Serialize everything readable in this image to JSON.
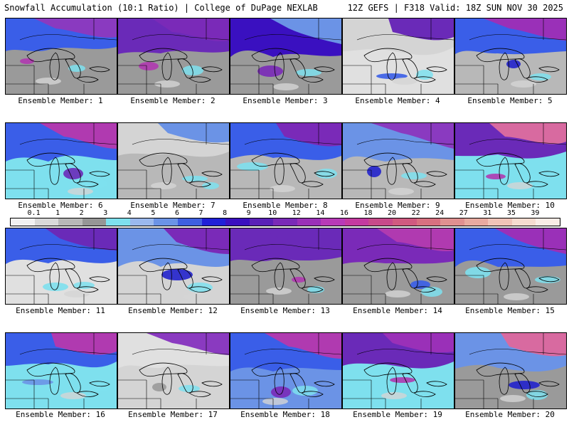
{
  "header": {
    "title": "Snowfall Accumulation (10:1 Ratio) | College of DuPage NEXLAB",
    "run_info": "12Z GEFS | F318 Valid: 18Z SUN NOV 30 2025"
  },
  "colorbar": {
    "levels": [
      "0.1",
      "1",
      "2",
      "3",
      "4",
      "5",
      "6",
      "7",
      "8",
      "9",
      "10",
      "12",
      "14",
      "16",
      "18",
      "20",
      "22",
      "24",
      "27",
      "31",
      "35",
      "39"
    ],
    "colors": [
      "#f2f2f2",
      "#d9d9d9",
      "#b8b8b8",
      "#969696",
      "#7ee0ee",
      "#9ab8ee",
      "#6b93e6",
      "#3f5fe0",
      "#2020d8",
      "#3a10c0",
      "#5a20b8",
      "#7a2ab8",
      "#9a30b8",
      "#b83ab8",
      "#c43aa0",
      "#c84a8a",
      "#d05a80",
      "#d87080",
      "#e09090",
      "#e8aaa0",
      "#f0c4b8",
      "#f6dcd0",
      "#faece6"
    ]
  },
  "members": [
    {
      "label": "Ensemble Member: 1"
    },
    {
      "label": "Ensemble Member: 2"
    },
    {
      "label": "Ensemble Member: 3"
    },
    {
      "label": "Ensemble Member: 4"
    },
    {
      "label": "Ensemble Member: 5"
    },
    {
      "label": "Ensemble Member: 6"
    },
    {
      "label": "Ensemble Member: 7"
    },
    {
      "label": "Ensemble Member: 8"
    },
    {
      "label": "Ensemble Member: 9"
    },
    {
      "label": "Ensemble Member: 10"
    },
    {
      "label": "Ensemble Member: 11"
    },
    {
      "label": "Ensemble Member: 12"
    },
    {
      "label": "Ensemble Member: 13"
    },
    {
      "label": "Ensemble Member: 14"
    },
    {
      "label": "Ensemble Member: 15"
    },
    {
      "label": "Ensemble Member: 16"
    },
    {
      "label": "Ensemble Member: 17"
    },
    {
      "label": "Ensemble Member: 18"
    },
    {
      "label": "Ensemble Member: 19"
    },
    {
      "label": "Ensemble Member: 20"
    }
  ],
  "colors": {
    "land_gray": "#9a9a9a",
    "light_gray": "#d4d4d4",
    "cyan": "#7ee0ee",
    "blue": "#3a5ee8",
    "deep_blue": "#2222cc",
    "purple": "#6a2ab8",
    "magenta": "#b03ab0",
    "pink": "#d86aa0"
  }
}
